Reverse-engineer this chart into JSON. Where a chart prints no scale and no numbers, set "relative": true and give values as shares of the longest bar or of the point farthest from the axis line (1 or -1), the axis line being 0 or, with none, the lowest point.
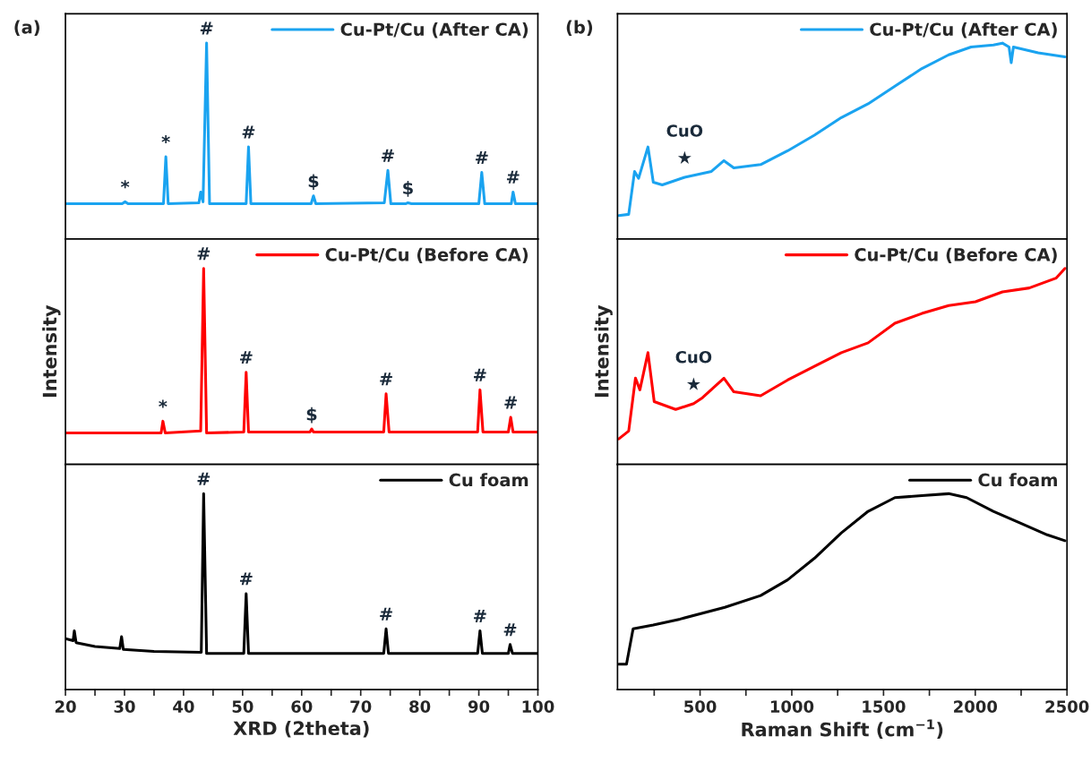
{
  "chart_data": [
    {
      "type": "line",
      "relative": true,
      "xlim": [
        20,
        100
      ],
      "tick_labels": false,
      "legend": "top right",
      "series": [
        {
          "name": "Cu-Pt/Cu (After CA)",
          "color": "#1aa3f0",
          "x": [
            20,
            29.6,
            30.1,
            30.6,
            36.6,
            37.0,
            37.4,
            42.6,
            42.9,
            43.3,
            43.9,
            44.4,
            50.6,
            51.0,
            51.4,
            61.6,
            62.0,
            62.4,
            74.0,
            74.6,
            75.1,
            77.6,
            78.0,
            78.6,
            90.0,
            90.5,
            91.0,
            95.5,
            95.8,
            96.2,
            100
          ],
          "values": [
            0.18,
            0.18,
            0.19,
            0.18,
            0.18,
            0.42,
            0.18,
            0.185,
            0.24,
            0.19,
            1.0,
            0.18,
            0.18,
            0.47,
            0.18,
            0.18,
            0.22,
            0.18,
            0.185,
            0.35,
            0.18,
            0.18,
            0.185,
            0.18,
            0.18,
            0.34,
            0.18,
            0.18,
            0.24,
            0.18,
            0.18
          ]
        }
      ],
      "annotations": [
        "(a)",
        {
          "text": "*",
          "x": 30.1,
          "y": 0.19
        },
        {
          "text": "*",
          "x": 37.0,
          "y": 0.42
        },
        {
          "text": "#",
          "x": 43.9,
          "y": 1.0
        },
        {
          "text": "#",
          "x": 51.0,
          "y": 0.47
        },
        {
          "text": "$",
          "x": 62.0,
          "y": 0.22
        },
        {
          "text": "#",
          "x": 74.6,
          "y": 0.35
        },
        {
          "text": "$",
          "x": 78.0,
          "y": 0.185
        },
        {
          "text": "#",
          "x": 90.5,
          "y": 0.34
        },
        {
          "text": "#",
          "x": 95.8,
          "y": 0.24
        }
      ]
    },
    {
      "type": "line",
      "relative": true,
      "xlim": [
        20,
        100
      ],
      "tick_labels": false,
      "legend": "top right",
      "ylabel": "Intensity",
      "series": [
        {
          "name": "Cu-Pt/Cu (Before CA)",
          "color": "#ff0000",
          "x": [
            20,
            36.2,
            36.5,
            36.9,
            42.9,
            43.4,
            43.9,
            50.2,
            50.6,
            51.0,
            61.4,
            61.7,
            62.0,
            73.9,
            74.3,
            74.8,
            89.8,
            90.2,
            90.7,
            95.0,
            95.4,
            95.8,
            100
          ],
          "values": [
            0.16,
            0.16,
            0.22,
            0.16,
            0.17,
            1.0,
            0.16,
            0.165,
            0.47,
            0.165,
            0.165,
            0.18,
            0.165,
            0.165,
            0.36,
            0.165,
            0.165,
            0.38,
            0.165,
            0.165,
            0.24,
            0.165,
            0.165
          ]
        }
      ],
      "annotations": [
        {
          "text": "*",
          "x": 36.5,
          "y": 0.22
        },
        {
          "text": "#",
          "x": 43.4,
          "y": 1.0
        },
        {
          "text": "#",
          "x": 50.6,
          "y": 0.47
        },
        {
          "text": "$",
          "x": 61.7,
          "y": 0.18
        },
        {
          "text": "#",
          "x": 74.3,
          "y": 0.36
        },
        {
          "text": "#",
          "x": 90.2,
          "y": 0.38
        },
        {
          "text": "#",
          "x": 95.4,
          "y": 0.24
        }
      ]
    },
    {
      "type": "line",
      "relative": true,
      "xlim": [
        20,
        100
      ],
      "tick_labels": "x",
      "legend": "top right",
      "xlabel": "XRD (2theta)",
      "xticks": [
        20,
        {
          "value": 25,
          "label": null
        },
        30,
        {
          "value": 35,
          "label": null
        },
        40,
        {
          "value": 45,
          "label": null
        },
        50,
        {
          "value": 55,
          "label": null
        },
        60,
        {
          "value": 65,
          "label": null
        },
        70,
        {
          "value": 75,
          "label": null
        },
        80,
        {
          "value": 85,
          "label": null
        },
        90,
        {
          "value": 95,
          "label": null
        },
        100
      ],
      "series": [
        {
          "name": "Cu foam",
          "color": "#000000",
          "x": [
            20,
            21.3,
            21.5,
            21.8,
            25,
            29.2,
            29.5,
            29.8,
            35,
            43.0,
            43.4,
            43.9,
            50.2,
            50.6,
            51.0,
            73.9,
            74.3,
            74.7,
            89.8,
            90.2,
            90.6,
            95.0,
            95.3,
            95.7,
            100
          ],
          "values": [
            0.26,
            0.25,
            0.3,
            0.24,
            0.22,
            0.21,
            0.27,
            0.205,
            0.195,
            0.19,
            1.0,
            0.185,
            0.185,
            0.49,
            0.185,
            0.185,
            0.31,
            0.185,
            0.185,
            0.3,
            0.185,
            0.185,
            0.23,
            0.185,
            0.185
          ]
        }
      ],
      "annotations": [
        {
          "text": "#",
          "x": 43.4,
          "y": 1.0
        },
        {
          "text": "#",
          "x": 50.6,
          "y": 0.49
        },
        {
          "text": "#",
          "x": 74.3,
          "y": 0.31
        },
        {
          "text": "#",
          "x": 90.2,
          "y": 0.3
        },
        {
          "text": "#",
          "x": 95.3,
          "y": 0.23
        }
      ]
    },
    {
      "type": "line",
      "relative": true,
      "xlim": [
        50,
        2500
      ],
      "tick_labels": false,
      "legend": "top right",
      "series": [
        {
          "name": "Cu-Pt/Cu (After CA)",
          "color": "#1aa3f0",
          "x": [
            57,
            111,
            143,
            165,
            216,
            245,
            294,
            416,
            562,
            630,
            684,
            830,
            977,
            1123,
            1270,
            1416,
            1562,
            1709,
            1855,
            1977,
            2099,
            2148,
            2184,
            2196,
            2208,
            2343,
            2489
          ],
          "values": [
            0.12,
            0.126,
            0.345,
            0.31,
            0.47,
            0.29,
            0.276,
            0.315,
            0.345,
            0.4,
            0.363,
            0.38,
            0.45,
            0.53,
            0.62,
            0.69,
            0.78,
            0.87,
            0.94,
            0.98,
            0.99,
            1.0,
            0.98,
            0.9,
            0.98,
            0.95,
            0.93
          ]
        }
      ],
      "annotations": [
        "(b)",
        {
          "text": "★",
          "x": 416,
          "y": 0.315
        },
        {
          "text": "CuO",
          "x": 416,
          "y": 0.315
        }
      ]
    },
    {
      "type": "line",
      "relative": true,
      "xlim": [
        50,
        2500
      ],
      "tick_labels": false,
      "legend": "top right",
      "ylabel": "Intensity",
      "series": [
        {
          "name": "Cu-Pt/Cu (Before CA)",
          "color": "#ff0000",
          "x": [
            57,
            111,
            148,
            172,
            216,
            250,
            367,
            465,
            513,
            630,
            684,
            830,
            977,
            1123,
            1270,
            1416,
            1562,
            1709,
            1855,
            2001,
            2148,
            2294,
            2440,
            2489
          ],
          "values": [
            0.13,
            0.17,
            0.44,
            0.38,
            0.57,
            0.32,
            0.28,
            0.31,
            0.34,
            0.44,
            0.37,
            0.35,
            0.43,
            0.5,
            0.57,
            0.62,
            0.72,
            0.77,
            0.81,
            0.83,
            0.88,
            0.9,
            0.95,
            1.0
          ]
        }
      ],
      "annotations": [
        {
          "text": "★",
          "x": 465,
          "y": 0.31
        },
        {
          "text": "CuO",
          "x": 465,
          "y": 0.31
        }
      ]
    },
    {
      "type": "line",
      "relative": true,
      "xlim": [
        50,
        2500
      ],
      "tick_labels": "x",
      "legend": "top right",
      "xlabel": "Raman Shift (cm$^{−1}$)",
      "xticks": [
        {
          "value": 250,
          "label": null
        },
        500,
        {
          "value": 750,
          "label": null
        },
        1000,
        {
          "value": 1250,
          "label": null
        },
        1500,
        {
          "value": 1750,
          "label": null
        },
        2000,
        {
          "value": 2250,
          "label": null
        },
        2500
      ],
      "series": [
        {
          "name": "Cu foam",
          "color": "#000000",
          "x": [
            57,
            99,
            135,
            245,
            391,
            635,
            830,
            977,
            1123,
            1270,
            1416,
            1562,
            1709,
            1855,
            1953,
            2099,
            2245,
            2392,
            2489
          ],
          "values": [
            0.13,
            0.13,
            0.31,
            0.33,
            0.36,
            0.42,
            0.48,
            0.56,
            0.67,
            0.8,
            0.91,
            0.98,
            0.99,
            1.0,
            0.98,
            0.91,
            0.85,
            0.79,
            0.76
          ]
        }
      ]
    }
  ]
}
